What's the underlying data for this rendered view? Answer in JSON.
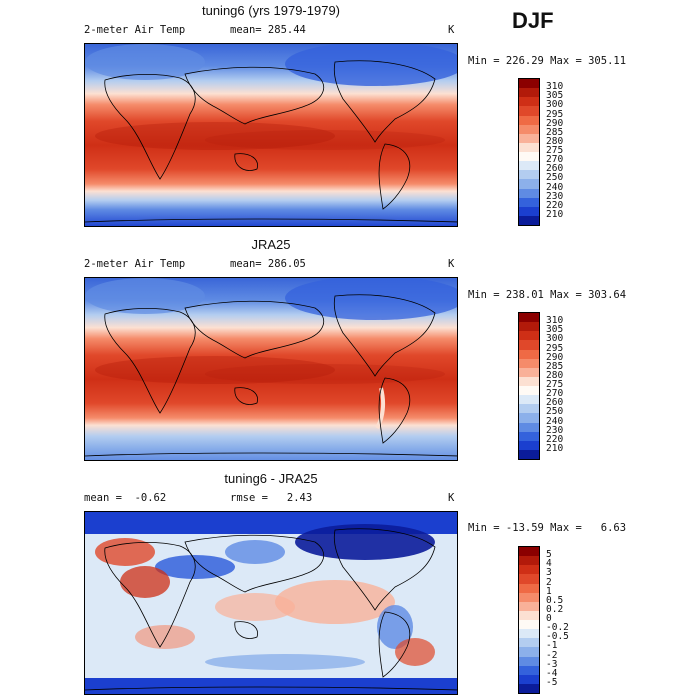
{
  "season": "DJF",
  "panels": [
    {
      "title": "tuning6 (yrs 1979-1979)",
      "left_label": "2-meter Air Temp",
      "center_label": "mean= 285.44",
      "units": "K",
      "minmax": "Min = 226.29 Max = 305.11",
      "colorbar_labels": [
        "310",
        "305",
        "300",
        "295",
        "290",
        "285",
        "280",
        "275",
        "270",
        "260",
        "250",
        "240",
        "230",
        "220",
        "210"
      ],
      "colorbar_colors": [
        "#8b0000",
        "#b21a0a",
        "#cf2f16",
        "#e0482a",
        "#ef6a45",
        "#f58b6a",
        "#f9b199",
        "#fce0d2",
        "#fffaf5",
        "#dce9f7",
        "#b3cdf0",
        "#8cb0ea",
        "#5f8be3",
        "#3462dc",
        "#1b3fcf",
        "#0b1c9a"
      ],
      "chart_data": {
        "type": "heatmap",
        "title": "tuning6 (yrs 1979-1979)",
        "variable": "2-meter Air Temp",
        "units": "K",
        "mean": 285.44,
        "min": 226.29,
        "max": 305.11,
        "levels": [
          210,
          220,
          230,
          240,
          250,
          260,
          270,
          275,
          280,
          285,
          290,
          295,
          300,
          305,
          310
        ]
      }
    },
    {
      "title": "JRA25",
      "left_label": "2-meter Air Temp",
      "center_label": "mean= 286.05",
      "units": "K",
      "minmax": "Min = 238.01 Max = 303.64",
      "colorbar_labels": [
        "310",
        "305",
        "300",
        "295",
        "290",
        "285",
        "280",
        "275",
        "270",
        "260",
        "250",
        "240",
        "230",
        "220",
        "210"
      ],
      "colorbar_colors": [
        "#8b0000",
        "#b21a0a",
        "#cf2f16",
        "#e0482a",
        "#ef6a45",
        "#f58b6a",
        "#f9b199",
        "#fce0d2",
        "#fffaf5",
        "#dce9f7",
        "#b3cdf0",
        "#8cb0ea",
        "#5f8be3",
        "#3462dc",
        "#1b3fcf",
        "#0b1c9a"
      ],
      "chart_data": {
        "type": "heatmap",
        "title": "JRA25",
        "variable": "2-meter Air Temp",
        "units": "K",
        "mean": 286.05,
        "min": 238.01,
        "max": 303.64,
        "levels": [
          210,
          220,
          230,
          240,
          250,
          260,
          270,
          275,
          280,
          285,
          290,
          295,
          300,
          305,
          310
        ]
      }
    },
    {
      "title": "tuning6 - JRA25",
      "left_label": "mean =  -0.62",
      "center_label": "rmse =   2.43",
      "units": "K",
      "minmax": "Min = -13.59 Max =   6.63",
      "colorbar_labels": [
        "5",
        "4",
        "3",
        "2",
        "1",
        "0.5",
        "0.2",
        "0",
        "-0.2",
        "-0.5",
        "-1",
        "-2",
        "-3",
        "-4",
        "-5"
      ],
      "colorbar_colors": [
        "#8b0000",
        "#b21a0a",
        "#cf2f16",
        "#e0482a",
        "#ef6a45",
        "#f58b6a",
        "#f9b199",
        "#fce0d2",
        "#fffaf5",
        "#dce9f7",
        "#b3cdf0",
        "#8cb0ea",
        "#5f8be3",
        "#3462dc",
        "#1b3fcf",
        "#0b1c9a"
      ],
      "chart_data": {
        "type": "heatmap",
        "title": "tuning6 - JRA25",
        "units": "K",
        "mean": -0.62,
        "rmse": 2.43,
        "min": -13.59,
        "max": 6.63,
        "levels": [
          -5,
          -4,
          -3,
          -2,
          -1,
          -0.5,
          -0.2,
          0,
          0.2,
          0.5,
          1,
          2,
          3,
          4,
          5
        ]
      }
    }
  ]
}
